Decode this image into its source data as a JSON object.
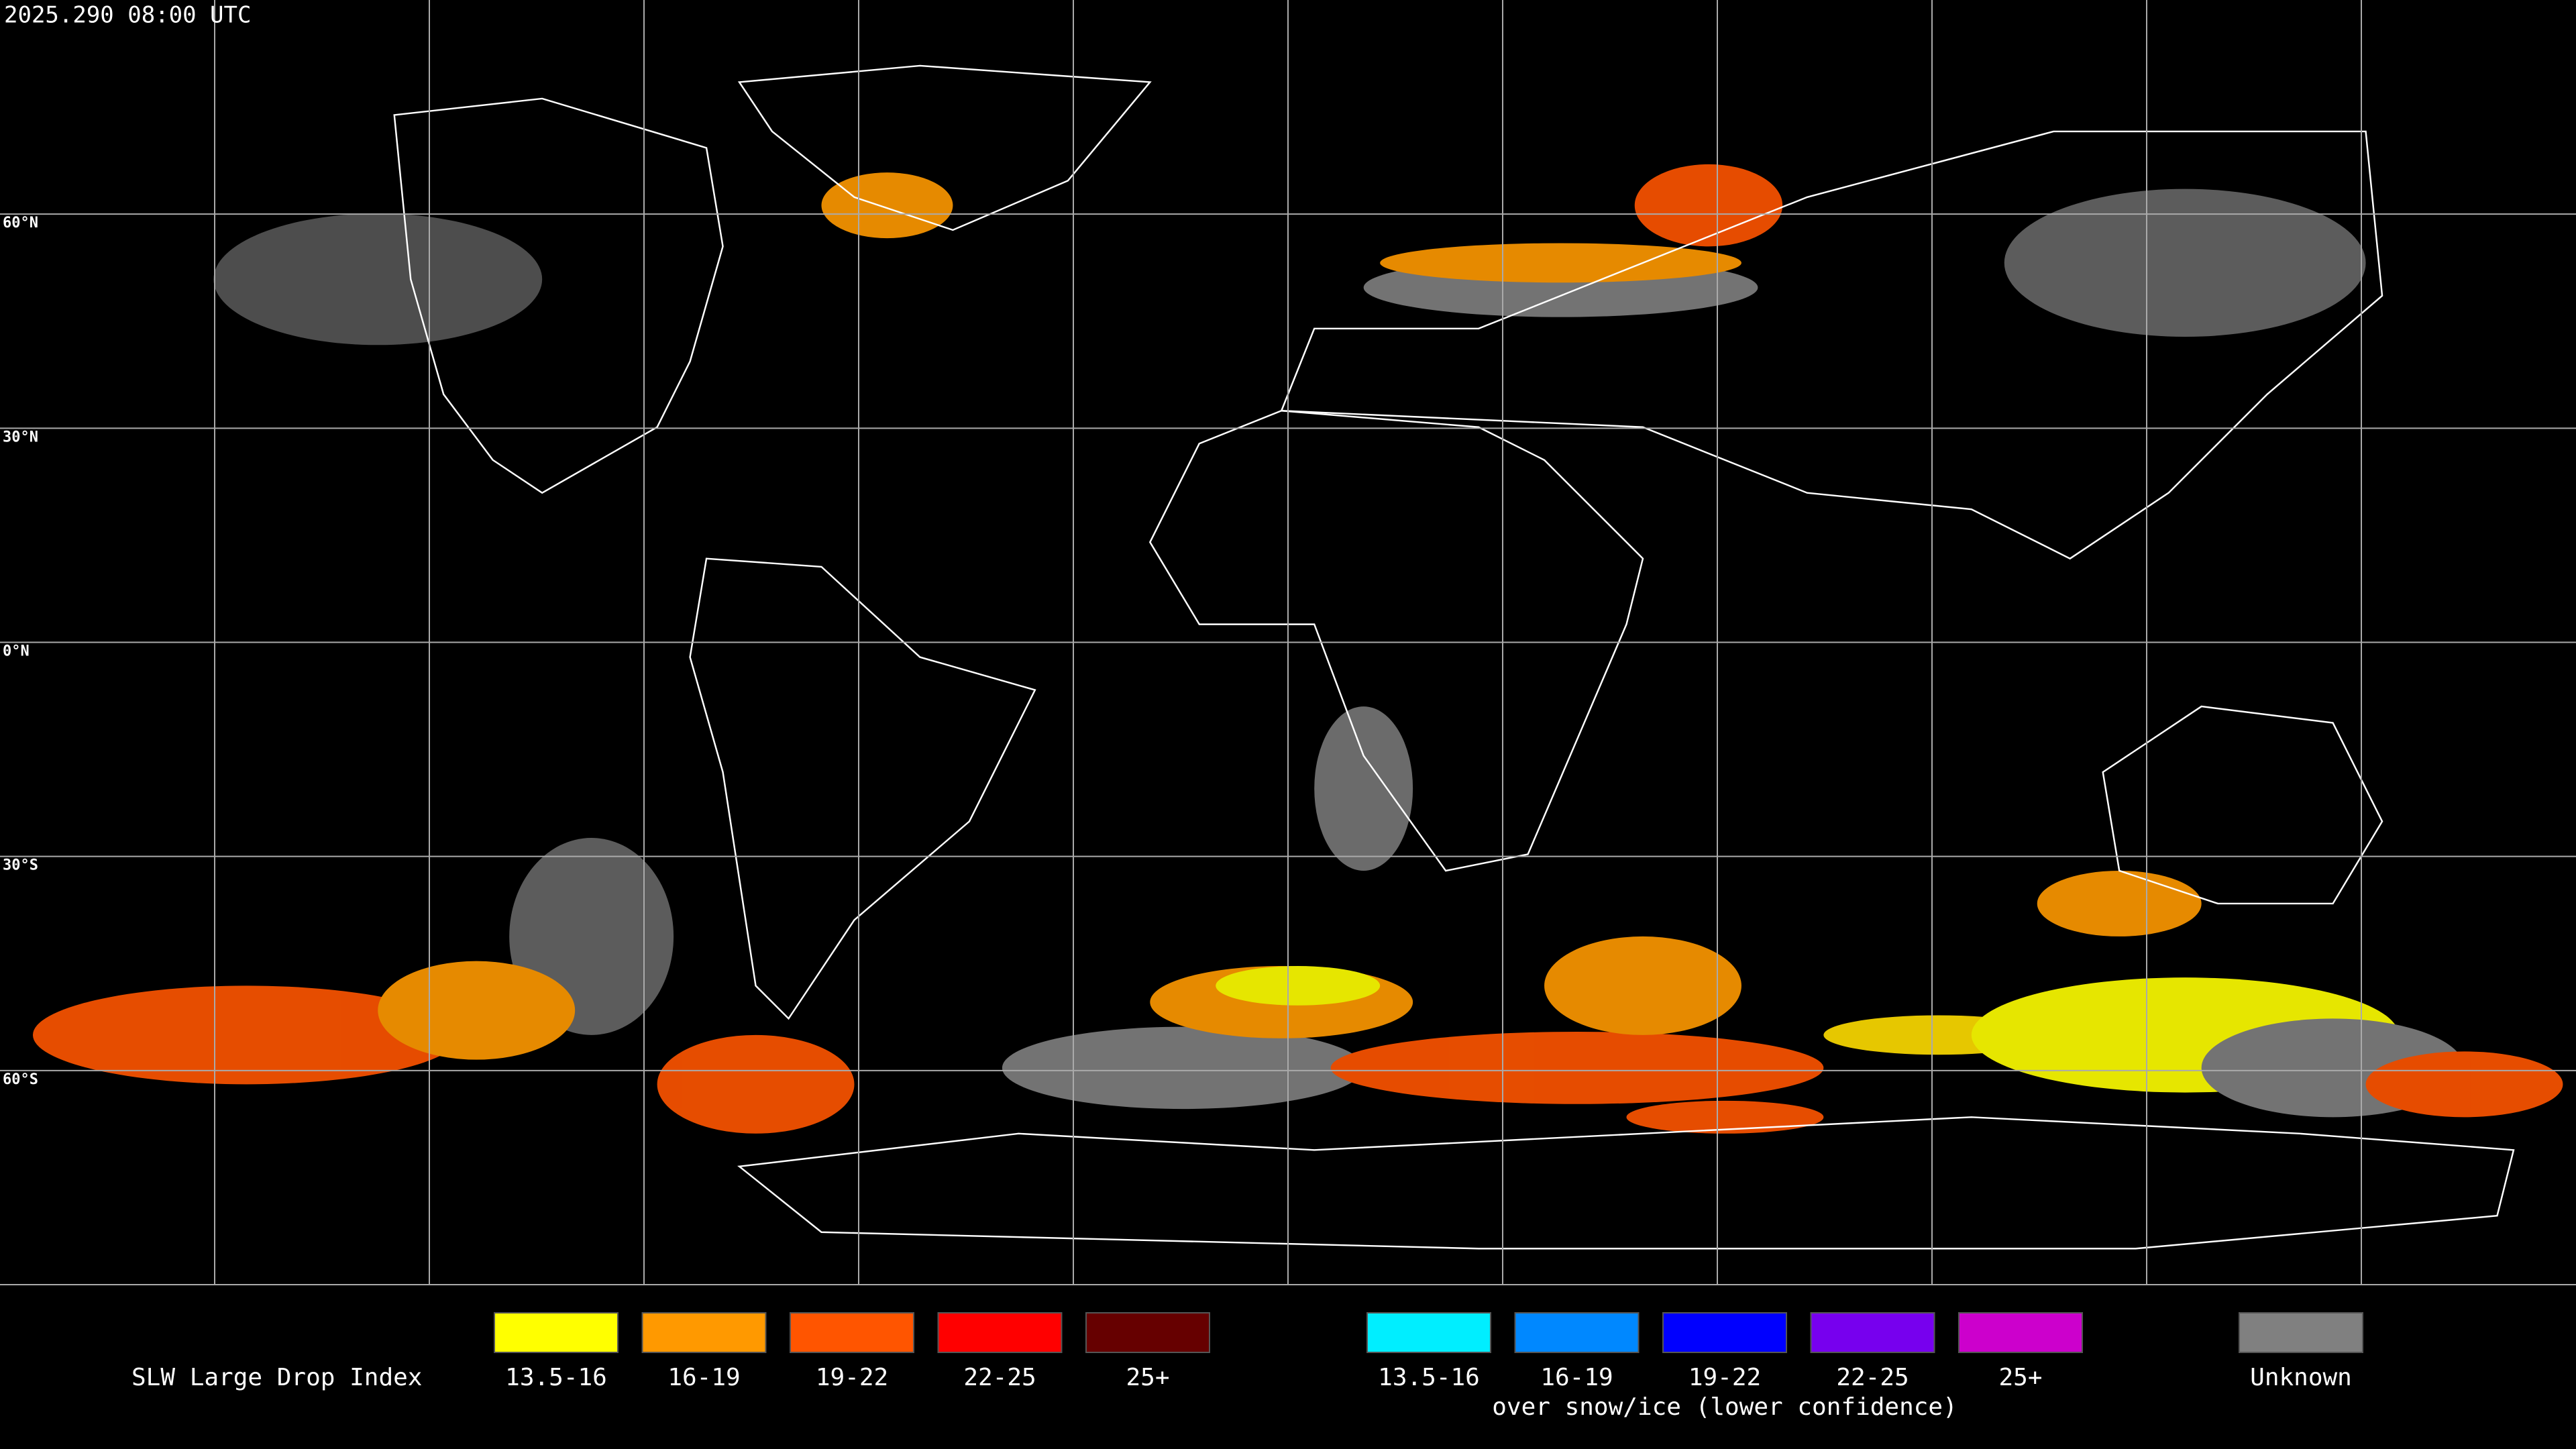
{
  "header": {
    "timestamp": "2025.290 08:00 UTC"
  },
  "map": {
    "latitude_labels": [
      "60°N",
      "30°N",
      "0°N",
      "30°S",
      "60°S"
    ]
  },
  "legend": {
    "title": "SLW Large Drop Index",
    "groups": [
      {
        "items": [
          {
            "label": "13.5-16",
            "color": "#ffff00"
          },
          {
            "label": "16-19",
            "color": "#ff9900"
          },
          {
            "label": "19-22",
            "color": "#ff5500"
          },
          {
            "label": "22-25",
            "color": "#ff0000"
          },
          {
            "label": "25+",
            "color": "#660000"
          }
        ]
      },
      {
        "items": [
          {
            "label": "13.5-16",
            "color": "#00eeff"
          },
          {
            "label": "16-19",
            "color": "#0088ff"
          },
          {
            "label": "19-22",
            "color": "#0000ff"
          },
          {
            "label": "22-25",
            "color": "#7700ee"
          },
          {
            "label": "25+",
            "color": "#cc00cc"
          }
        ],
        "caption": "over snow/ice (lower confidence)"
      },
      {
        "items": [
          {
            "label": "Unknown",
            "color": "#808080"
          }
        ]
      }
    ]
  }
}
